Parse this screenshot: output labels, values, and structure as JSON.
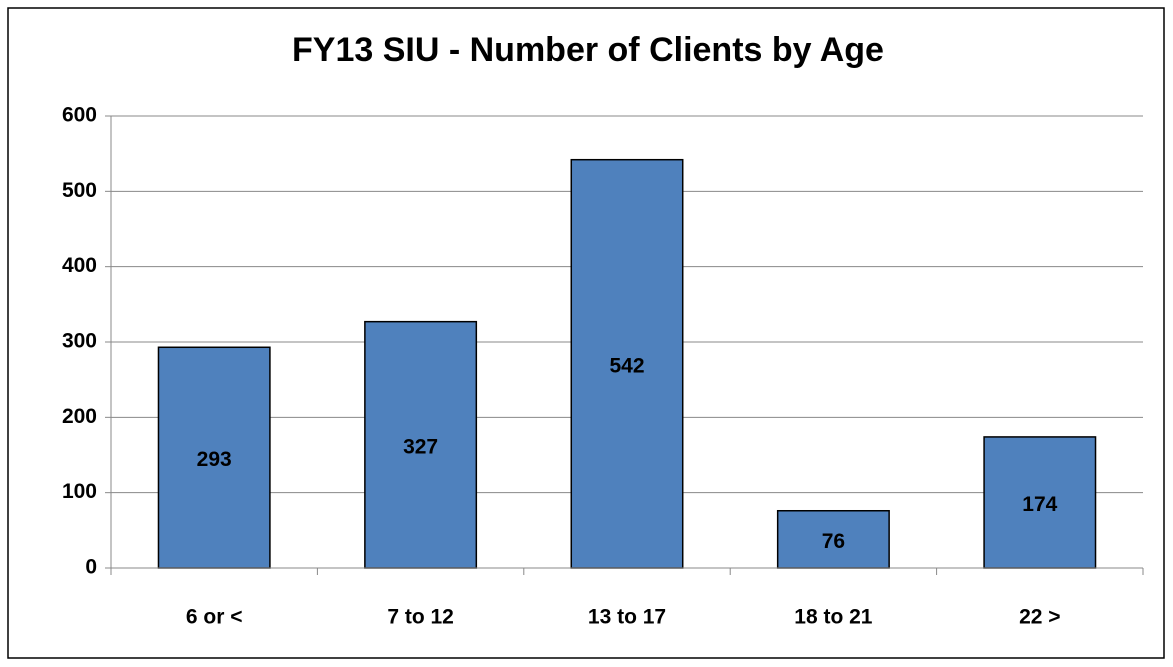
{
  "chart_data": {
    "type": "bar",
    "title": "FY13 SIU - Number of Clients by Age",
    "categories": [
      "6 or <",
      "7 to 12",
      "13 to 17",
      "18 to 21",
      "22 >"
    ],
    "values": [
      293,
      327,
      542,
      76,
      174
    ],
    "color": "#4f81bd",
    "ylim": [
      0,
      600
    ],
    "yticks": [
      0,
      100,
      200,
      300,
      400,
      500,
      600
    ],
    "grid": true
  }
}
